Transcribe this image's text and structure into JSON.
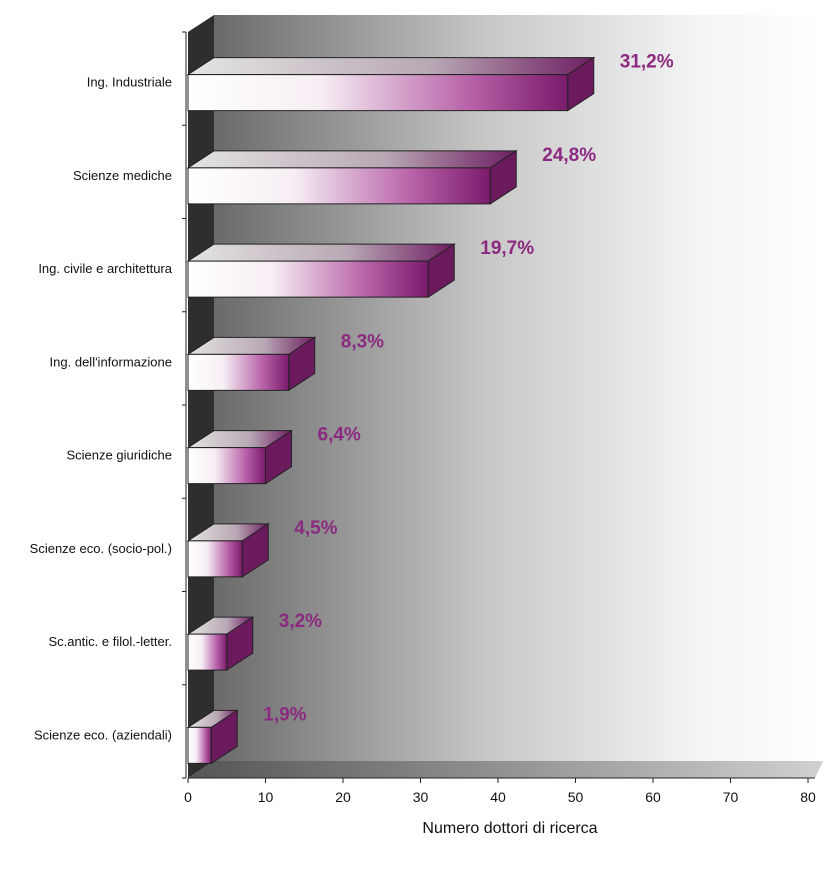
{
  "chart_data": {
    "type": "bar",
    "orientation": "horizontal",
    "categories": [
      "Ing. Industriale",
      "Scienze mediche",
      "Ing. civile e architettura",
      "Ing. dell'informazione",
      "Scienze giuridiche",
      "Scienze eco. (socio-pol.)",
      "Sc.antic. e filol.-letter.",
      "Scienze eco. (aziendali)"
    ],
    "values": [
      49,
      39,
      31,
      13,
      10,
      7,
      5,
      3
    ],
    "data_labels": [
      "31,2%",
      "24,8%",
      "19,7%",
      "8,3%",
      "6,4%",
      "4,5%",
      "3,2%",
      "1,9%"
    ],
    "x_ticks": [
      "0",
      "10",
      "20",
      "30",
      "40",
      "50",
      "60",
      "70",
      "80"
    ],
    "xlim": [
      0,
      80
    ],
    "xlabel": "Numero dottori di ricerca",
    "colors": {
      "bar_dark": "#7a1a6b",
      "bar_light": "#ffffff",
      "label": "#8b2a80",
      "wall_dark": "#5a5a5a",
      "wall_light": "#f4f4f4"
    }
  }
}
